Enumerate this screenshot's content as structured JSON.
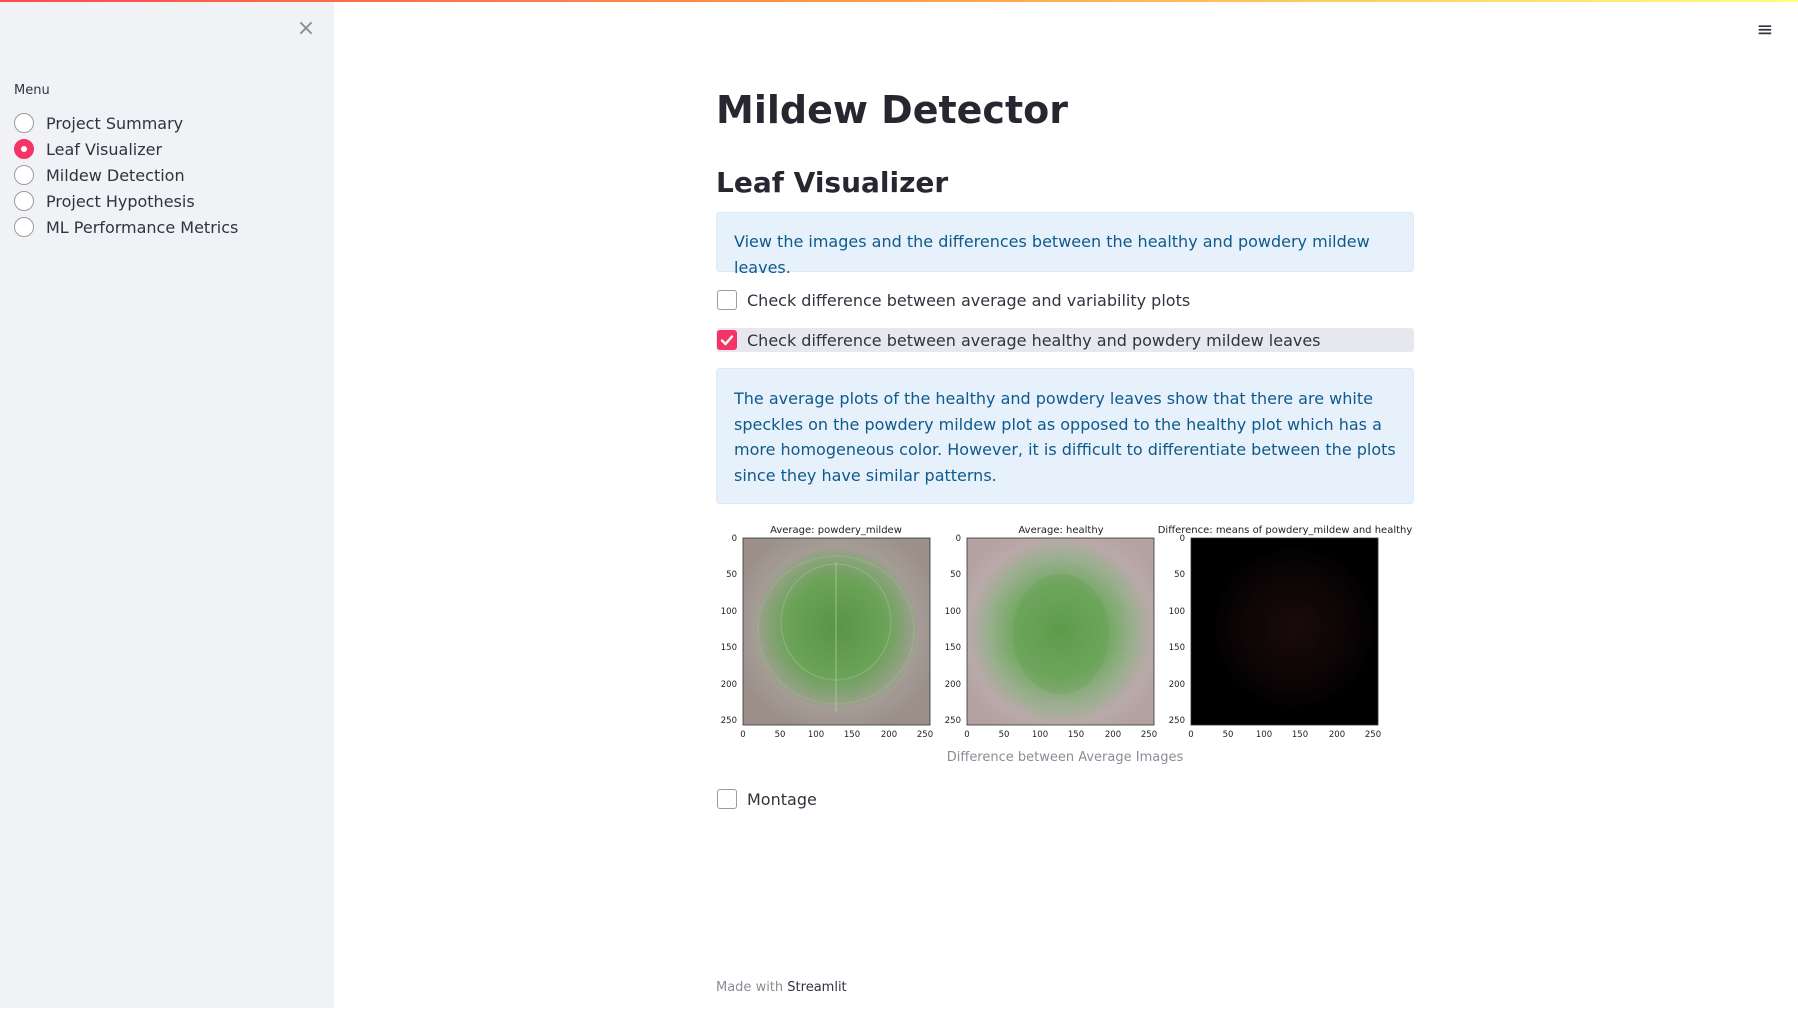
{
  "sidebar": {
    "close_glyph": "×",
    "menu_label": "Menu",
    "items": [
      {
        "label": "Project Summary",
        "selected": false
      },
      {
        "label": "Leaf Visualizer",
        "selected": true
      },
      {
        "label": "Mildew Detection",
        "selected": false
      },
      {
        "label": "Project Hypothesis",
        "selected": false
      },
      {
        "label": "ML Performance Metrics",
        "selected": false
      }
    ]
  },
  "header": {
    "menu_glyph": "≡"
  },
  "main": {
    "title": "Mildew Detector",
    "subtitle": "Leaf Visualizer",
    "intro_info": "View the images and the differences between the healthy and powdery mildew leaves.",
    "checkboxes": [
      {
        "label": "Check difference between average and variability plots",
        "checked": false
      },
      {
        "label": "Check difference between average healthy and powdery mildew leaves",
        "checked": true
      },
      {
        "label": "Montage",
        "checked": false
      }
    ],
    "explanation": "The average plots of the healthy and powdery leaves show that there are white speckles on the powdery mildew plot as opposed to the healthy plot which has a more homogeneous color. However, it is difficult to differentiate between the plots since they have similar patterns.",
    "figure": {
      "panels": [
        {
          "title": "Average: powdery_mildew",
          "kind": "powdery"
        },
        {
          "title": "Average: healthy",
          "kind": "healthy"
        },
        {
          "title": "Difference: means of powdery_mildew and healthy",
          "kind": "difference"
        }
      ],
      "y_ticks": [
        "0",
        "50",
        "100",
        "150",
        "200",
        "250"
      ],
      "x_ticks": [
        "0",
        "50",
        "100",
        "150",
        "200",
        "250"
      ]
    },
    "caption": "Difference between Average Images"
  },
  "footer": {
    "prefix": "Made with",
    "brand": "Streamlit"
  },
  "colors": {
    "accent": "#f63366",
    "info_bg": "#e6f1fc",
    "info_text": "#0f5a8a",
    "sidebar_bg": "#f0f2f6"
  }
}
